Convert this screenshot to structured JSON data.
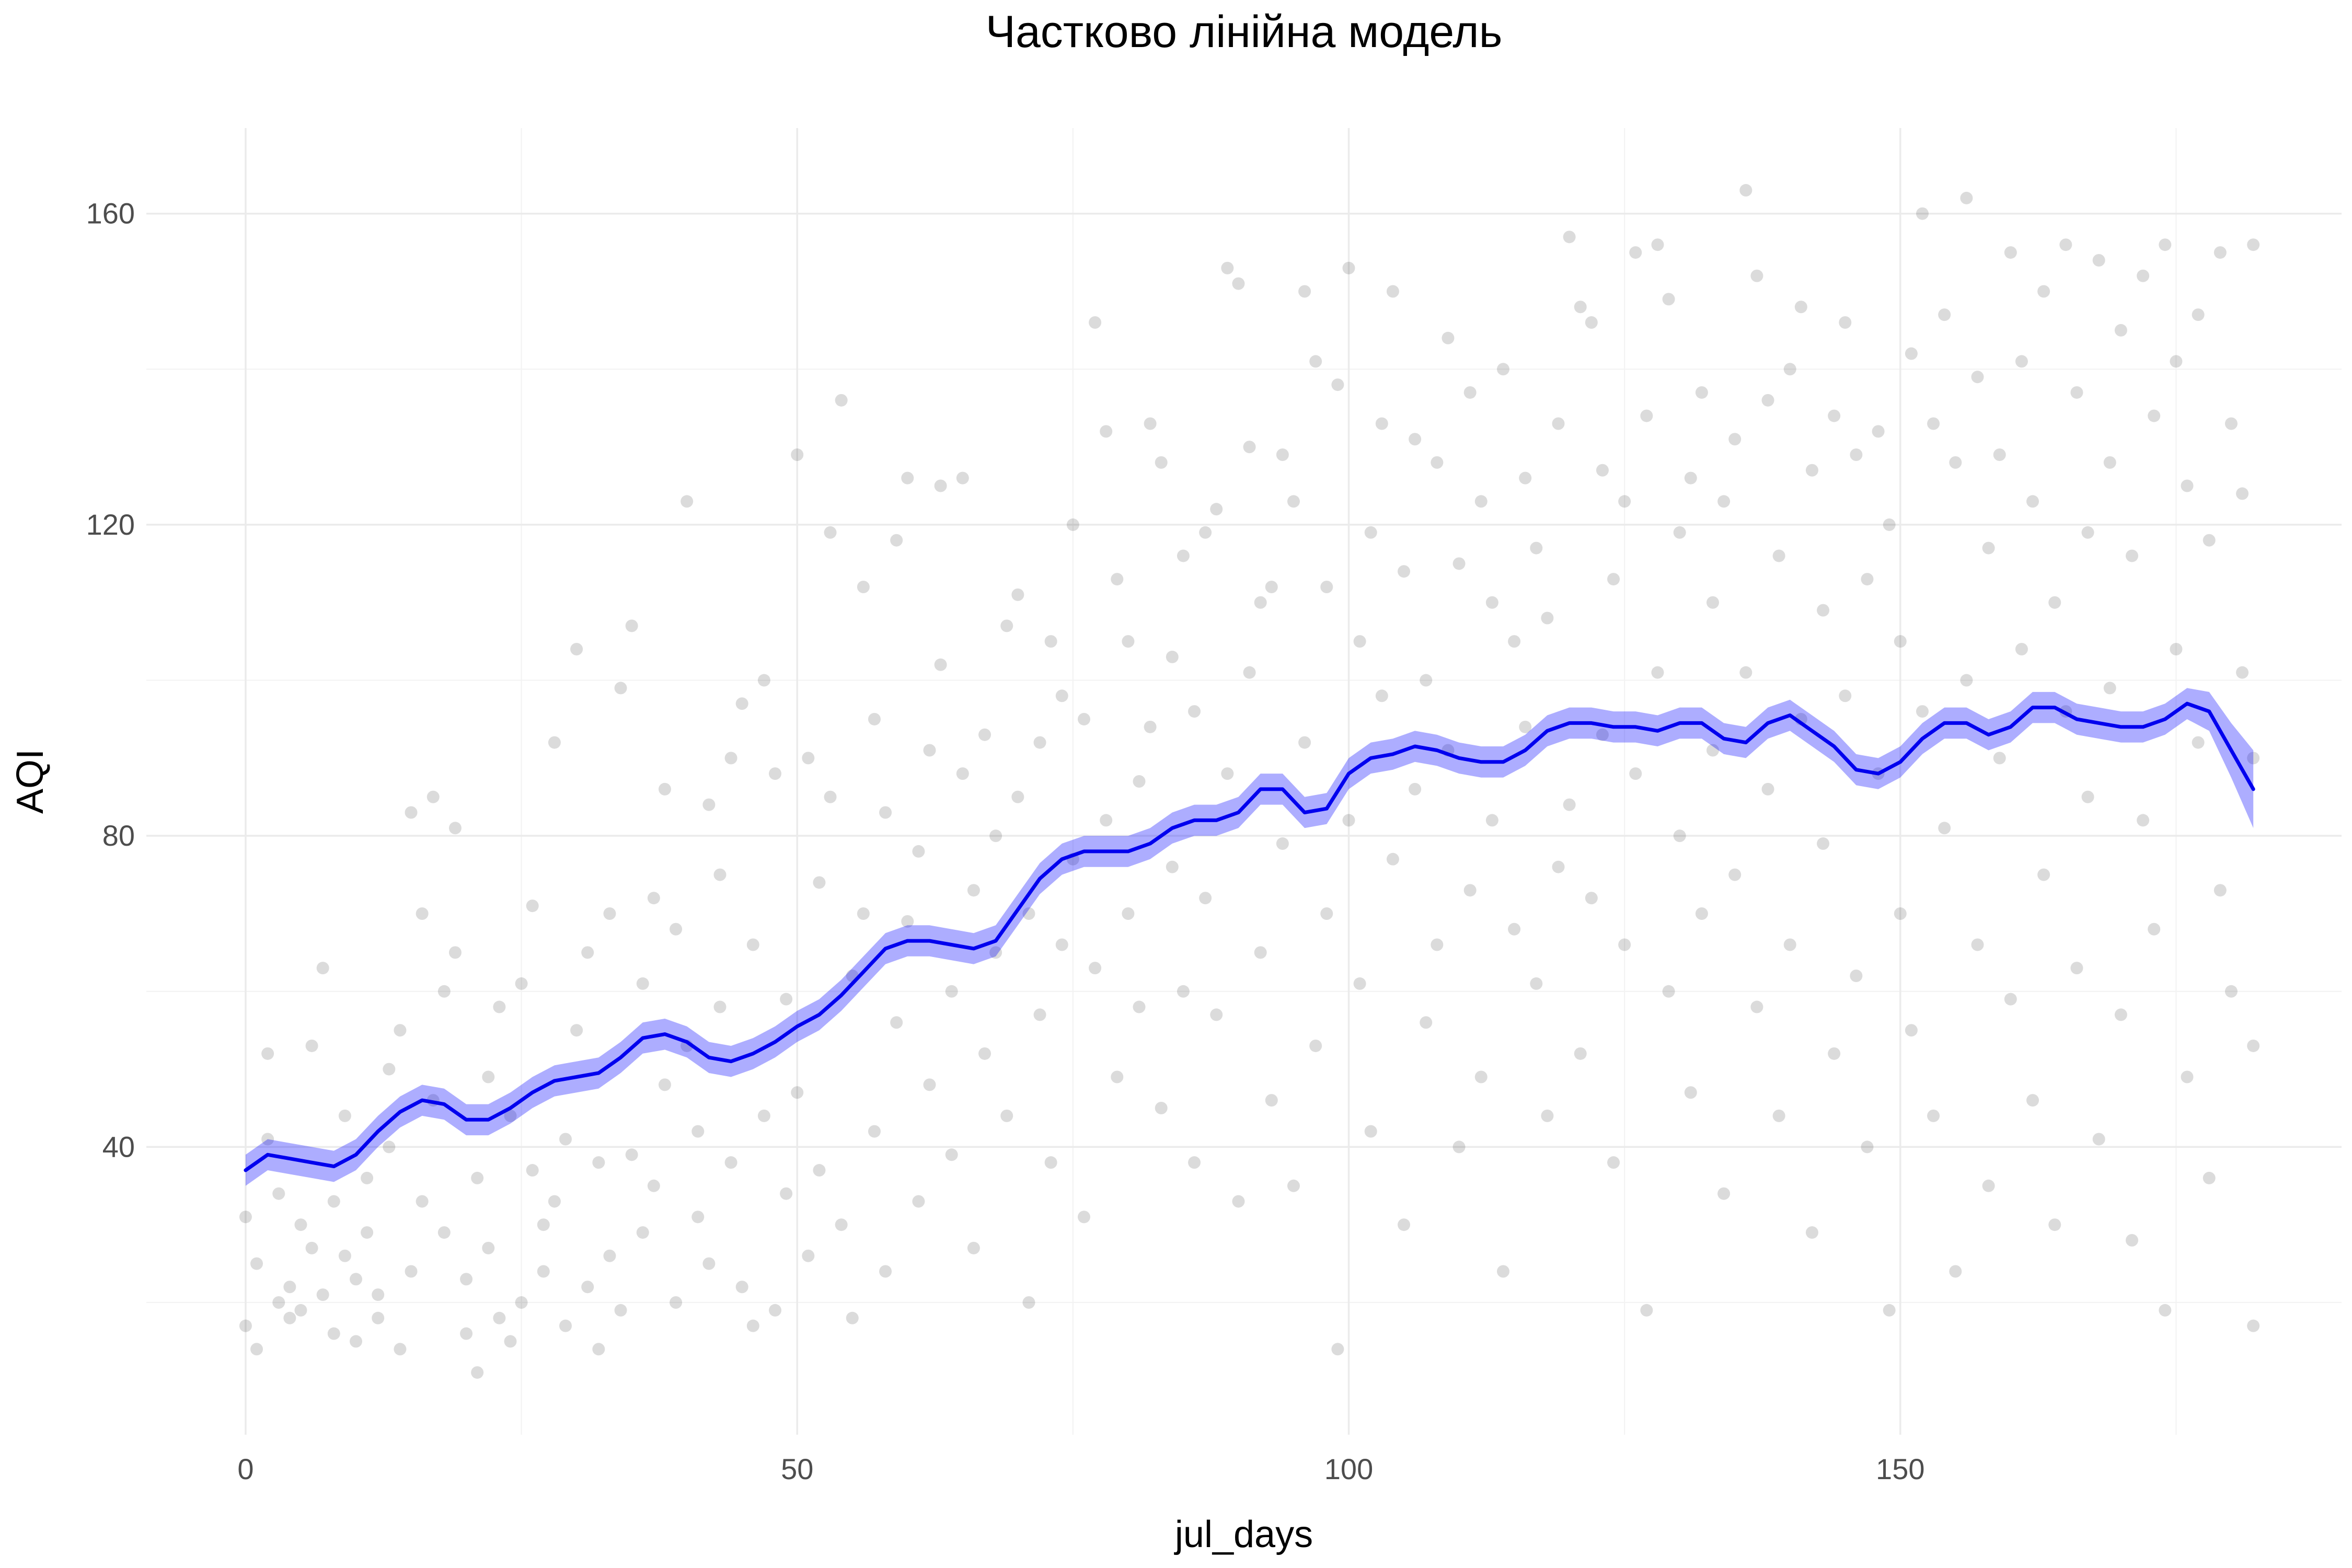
{
  "chart_data": {
    "type": "scatter",
    "title": "Частково лінійна модель",
    "xlabel": "jul_days",
    "ylabel": "AQI",
    "xlim": [
      -9,
      190
    ],
    "ylim": [
      3,
      171
    ],
    "x_ticks": [
      0,
      50,
      100,
      150
    ],
    "y_ticks": [
      40,
      80,
      120,
      160
    ],
    "grid": true,
    "legend": "none",
    "colors": {
      "points": "#000000",
      "fit_line": "#0000ee",
      "band": "#0000ff",
      "grid": "#ebebeb"
    },
    "fit_line": {
      "x": [
        0,
        2,
        4,
        6,
        8,
        10,
        12,
        14,
        16,
        18,
        20,
        22,
        24,
        26,
        28,
        30,
        32,
        34,
        36,
        38,
        40,
        42,
        44,
        46,
        48,
        50,
        52,
        54,
        56,
        58,
        60,
        62,
        64,
        66,
        68,
        70,
        72,
        74,
        76,
        78,
        80,
        82,
        84,
        86,
        88,
        90,
        92,
        94,
        96,
        98,
        100,
        102,
        104,
        106,
        108,
        110,
        112,
        114,
        116,
        118,
        120,
        122,
        124,
        126,
        128,
        130,
        132,
        134,
        136,
        138,
        140,
        142,
        144,
        146,
        148,
        150,
        152,
        154,
        156,
        158,
        160,
        162,
        164,
        166,
        168,
        170,
        172,
        174,
        176,
        178,
        180,
        182
      ],
      "y": [
        37,
        39,
        38.5,
        38,
        37.5,
        39,
        42,
        44.5,
        46,
        45.5,
        43.5,
        43.5,
        45,
        47,
        48.5,
        49,
        49.5,
        51.5,
        54,
        54.5,
        53.5,
        51.5,
        51,
        52,
        53.5,
        55.5,
        57,
        59.5,
        62.5,
        65.5,
        66.5,
        66.5,
        66,
        65.5,
        66.5,
        70.5,
        74.5,
        77,
        78,
        78,
        78,
        79,
        81,
        82,
        82,
        83,
        86,
        86,
        83,
        83.5,
        88,
        90,
        90.5,
        91.5,
        91,
        90,
        89.5,
        89.5,
        91,
        93.5,
        94.5,
        94.5,
        94,
        94,
        93.5,
        94.5,
        94.5,
        92.5,
        92,
        94.5,
        95.5,
        93.5,
        91.5,
        88.5,
        88,
        89.5,
        92.5,
        94.5,
        94.5,
        93,
        94,
        96.5,
        96.5,
        95,
        94.5,
        94,
        94,
        95,
        97,
        96,
        91,
        86
      ],
      "band_halfwidth": [
        2,
        2,
        2,
        2,
        2,
        2,
        2,
        2,
        2,
        2,
        2,
        2,
        2,
        2,
        2,
        2,
        2,
        2,
        2,
        2,
        2,
        2,
        2,
        2,
        2,
        2,
        2,
        2,
        2,
        2,
        2,
        2,
        2,
        2,
        2,
        2,
        2,
        2,
        2,
        2,
        2,
        2,
        2,
        2,
        2,
        2,
        2,
        2,
        2,
        2,
        2,
        2,
        2,
        2,
        2,
        2,
        2,
        2,
        2,
        2,
        2,
        2,
        2,
        2,
        2,
        2,
        2,
        2,
        2,
        2,
        2,
        2,
        2,
        2,
        2,
        2,
        2,
        2,
        2,
        2,
        2,
        2,
        2,
        2,
        2,
        2,
        2,
        2,
        2,
        2.5,
        3.5,
        5
      ]
    },
    "points": [
      [
        0,
        17
      ],
      [
        0,
        31
      ],
      [
        1,
        25
      ],
      [
        1,
        14
      ],
      [
        2,
        41
      ],
      [
        2,
        52
      ],
      [
        3,
        20
      ],
      [
        3,
        34
      ],
      [
        4,
        22
      ],
      [
        4,
        18
      ],
      [
        5,
        30
      ],
      [
        5,
        19
      ],
      [
        6,
        27
      ],
      [
        6,
        53
      ],
      [
        7,
        63
      ],
      [
        7,
        21
      ],
      [
        8,
        16
      ],
      [
        8,
        33
      ],
      [
        9,
        26
      ],
      [
        9,
        44
      ],
      [
        10,
        23
      ],
      [
        10,
        15
      ],
      [
        11,
        29
      ],
      [
        11,
        36
      ],
      [
        12,
        18
      ],
      [
        12,
        21
      ],
      [
        13,
        40
      ],
      [
        13,
        50
      ],
      [
        14,
        55
      ],
      [
        14,
        14
      ],
      [
        15,
        24
      ],
      [
        15,
        83
      ],
      [
        16,
        70
      ],
      [
        16,
        33
      ],
      [
        17,
        85
      ],
      [
        17,
        46
      ],
      [
        18,
        60
      ],
      [
        18,
        29
      ],
      [
        19,
        81
      ],
      [
        19,
        65
      ],
      [
        20,
        16
      ],
      [
        20,
        23
      ],
      [
        21,
        11
      ],
      [
        21,
        36
      ],
      [
        22,
        49
      ],
      [
        22,
        27
      ],
      [
        23,
        18
      ],
      [
        23,
        58
      ],
      [
        24,
        15
      ],
      [
        24,
        44
      ],
      [
        25,
        61
      ],
      [
        25,
        20
      ],
      [
        26,
        37
      ],
      [
        26,
        71
      ],
      [
        27,
        30
      ],
      [
        27,
        24
      ],
      [
        28,
        92
      ],
      [
        28,
        33
      ],
      [
        29,
        17
      ],
      [
        29,
        41
      ],
      [
        30,
        104
      ],
      [
        30,
        55
      ],
      [
        31,
        22
      ],
      [
        31,
        65
      ],
      [
        32,
        38
      ],
      [
        32,
        14
      ],
      [
        33,
        70
      ],
      [
        33,
        26
      ],
      [
        34,
        99
      ],
      [
        34,
        19
      ],
      [
        35,
        39
      ],
      [
        35,
        107
      ],
      [
        36,
        61
      ],
      [
        36,
        29
      ],
      [
        37,
        72
      ],
      [
        37,
        35
      ],
      [
        38,
        86
      ],
      [
        38,
        48
      ],
      [
        39,
        20
      ],
      [
        39,
        68
      ],
      [
        40,
        123
      ],
      [
        40,
        53
      ],
      [
        41,
        42
      ],
      [
        41,
        31
      ],
      [
        42,
        84
      ],
      [
        42,
        25
      ],
      [
        43,
        58
      ],
      [
        43,
        75
      ],
      [
        44,
        90
      ],
      [
        44,
        38
      ],
      [
        45,
        97
      ],
      [
        45,
        22
      ],
      [
        46,
        66
      ],
      [
        46,
        17
      ],
      [
        47,
        44
      ],
      [
        47,
        100
      ],
      [
        48,
        88
      ],
      [
        48,
        19
      ],
      [
        49,
        34
      ],
      [
        49,
        59
      ],
      [
        50,
        129
      ],
      [
        50,
        47
      ],
      [
        51,
        90
      ],
      [
        51,
        26
      ],
      [
        52,
        74
      ],
      [
        52,
        37
      ],
      [
        53,
        119
      ],
      [
        53,
        85
      ],
      [
        54,
        136
      ],
      [
        54,
        30
      ],
      [
        55,
        62
      ],
      [
        55,
        18
      ],
      [
        56,
        112
      ],
      [
        56,
        70
      ],
      [
        57,
        42
      ],
      [
        57,
        95
      ],
      [
        58,
        83
      ],
      [
        58,
        24
      ],
      [
        59,
        118
      ],
      [
        59,
        56
      ],
      [
        60,
        126
      ],
      [
        60,
        69
      ],
      [
        61,
        78
      ],
      [
        61,
        33
      ],
      [
        62,
        91
      ],
      [
        62,
        48
      ],
      [
        63,
        125
      ],
      [
        63,
        102
      ],
      [
        64,
        60
      ],
      [
        64,
        39
      ],
      [
        65,
        126
      ],
      [
        65,
        88
      ],
      [
        66,
        73
      ],
      [
        66,
        27
      ],
      [
        67,
        93
      ],
      [
        67,
        52
      ],
      [
        68,
        80
      ],
      [
        68,
        65
      ],
      [
        69,
        107
      ],
      [
        69,
        44
      ],
      [
        70,
        111
      ],
      [
        70,
        85
      ],
      [
        71,
        70
      ],
      [
        71,
        20
      ],
      [
        72,
        92
      ],
      [
        72,
        57
      ],
      [
        73,
        105
      ],
      [
        73,
        38
      ],
      [
        74,
        98
      ],
      [
        74,
        66
      ],
      [
        75,
        120
      ],
      [
        75,
        77
      ],
      [
        76,
        95
      ],
      [
        76,
        31
      ],
      [
        77,
        146
      ],
      [
        77,
        63
      ],
      [
        78,
        132
      ],
      [
        78,
        82
      ],
      [
        79,
        113
      ],
      [
        79,
        49
      ],
      [
        80,
        105
      ],
      [
        80,
        70
      ],
      [
        81,
        87
      ],
      [
        81,
        58
      ],
      [
        82,
        133
      ],
      [
        82,
        94
      ],
      [
        83,
        128
      ],
      [
        83,
        45
      ],
      [
        84,
        103
      ],
      [
        84,
        76
      ],
      [
        85,
        116
      ],
      [
        85,
        60
      ],
      [
        86,
        96
      ],
      [
        86,
        38
      ],
      [
        87,
        119
      ],
      [
        87,
        72
      ],
      [
        88,
        122
      ],
      [
        88,
        57
      ],
      [
        89,
        153
      ],
      [
        89,
        88
      ],
      [
        90,
        151
      ],
      [
        90,
        33
      ],
      [
        91,
        130
      ],
      [
        91,
        101
      ],
      [
        92,
        110
      ],
      [
        92,
        65
      ],
      [
        93,
        112
      ],
      [
        93,
        46
      ],
      [
        94,
        129
      ],
      [
        94,
        79
      ],
      [
        95,
        123
      ],
      [
        95,
        35
      ],
      [
        96,
        150
      ],
      [
        96,
        92
      ],
      [
        97,
        141
      ],
      [
        97,
        53
      ],
      [
        98,
        112
      ],
      [
        98,
        70
      ],
      [
        99,
        138
      ],
      [
        99,
        14
      ],
      [
        100,
        153
      ],
      [
        100,
        82
      ],
      [
        101,
        105
      ],
      [
        101,
        61
      ],
      [
        102,
        119
      ],
      [
        102,
        42
      ],
      [
        103,
        133
      ],
      [
        103,
        98
      ],
      [
        104,
        150
      ],
      [
        104,
        77
      ],
      [
        105,
        114
      ],
      [
        105,
        30
      ],
      [
        106,
        131
      ],
      [
        106,
        86
      ],
      [
        107,
        100
      ],
      [
        107,
        56
      ],
      [
        108,
        128
      ],
      [
        108,
        66
      ],
      [
        109,
        144
      ],
      [
        109,
        91
      ],
      [
        110,
        115
      ],
      [
        110,
        40
      ],
      [
        111,
        137
      ],
      [
        111,
        73
      ],
      [
        112,
        123
      ],
      [
        112,
        49
      ],
      [
        113,
        110
      ],
      [
        113,
        82
      ],
      [
        114,
        140
      ],
      [
        114,
        24
      ],
      [
        115,
        105
      ],
      [
        115,
        68
      ],
      [
        116,
        126
      ],
      [
        116,
        94
      ],
      [
        117,
        117
      ],
      [
        117,
        61
      ],
      [
        118,
        108
      ],
      [
        118,
        44
      ],
      [
        119,
        133
      ],
      [
        119,
        76
      ],
      [
        120,
        157
      ],
      [
        120,
        84
      ],
      [
        121,
        148
      ],
      [
        121,
        52
      ],
      [
        122,
        146
      ],
      [
        122,
        72
      ],
      [
        123,
        127
      ],
      [
        123,
        93
      ],
      [
        124,
        113
      ],
      [
        124,
        38
      ],
      [
        125,
        123
      ],
      [
        125,
        66
      ],
      [
        126,
        155
      ],
      [
        126,
        88
      ],
      [
        127,
        134
      ],
      [
        127,
        19
      ],
      [
        128,
        156
      ],
      [
        128,
        101
      ],
      [
        129,
        149
      ],
      [
        129,
        60
      ],
      [
        130,
        119
      ],
      [
        130,
        80
      ],
      [
        131,
        126
      ],
      [
        131,
        47
      ],
      [
        132,
        137
      ],
      [
        132,
        70
      ],
      [
        133,
        110
      ],
      [
        133,
        91
      ],
      [
        134,
        123
      ],
      [
        134,
        34
      ],
      [
        135,
        131
      ],
      [
        135,
        75
      ],
      [
        136,
        163
      ],
      [
        136,
        101
      ],
      [
        137,
        152
      ],
      [
        137,
        58
      ],
      [
        138,
        136
      ],
      [
        138,
        86
      ],
      [
        139,
        116
      ],
      [
        139,
        44
      ],
      [
        140,
        140
      ],
      [
        140,
        66
      ],
      [
        141,
        148
      ],
      [
        141,
        95
      ],
      [
        142,
        127
      ],
      [
        142,
        29
      ],
      [
        143,
        109
      ],
      [
        143,
        79
      ],
      [
        144,
        134
      ],
      [
        144,
        52
      ],
      [
        145,
        146
      ],
      [
        145,
        98
      ],
      [
        146,
        129
      ],
      [
        146,
        62
      ],
      [
        147,
        113
      ],
      [
        147,
        40
      ],
      [
        148,
        132
      ],
      [
        148,
        88
      ],
      [
        149,
        120
      ],
      [
        149,
        19
      ],
      [
        150,
        105
      ],
      [
        150,
        70
      ],
      [
        151,
        142
      ],
      [
        151,
        55
      ],
      [
        152,
        160
      ],
      [
        152,
        96
      ],
      [
        153,
        133
      ],
      [
        153,
        44
      ],
      [
        154,
        147
      ],
      [
        154,
        81
      ],
      [
        155,
        128
      ],
      [
        155,
        24
      ],
      [
        156,
        162
      ],
      [
        156,
        100
      ],
      [
        157,
        139
      ],
      [
        157,
        66
      ],
      [
        158,
        117
      ],
      [
        158,
        35
      ],
      [
        159,
        129
      ],
      [
        159,
        90
      ],
      [
        160,
        155
      ],
      [
        160,
        59
      ],
      [
        161,
        141
      ],
      [
        161,
        104
      ],
      [
        162,
        123
      ],
      [
        162,
        46
      ],
      [
        163,
        150
      ],
      [
        163,
        75
      ],
      [
        164,
        110
      ],
      [
        164,
        30
      ],
      [
        165,
        156
      ],
      [
        165,
        96
      ],
      [
        166,
        137
      ],
      [
        166,
        63
      ],
      [
        167,
        119
      ],
      [
        167,
        85
      ],
      [
        168,
        154
      ],
      [
        168,
        41
      ],
      [
        169,
        128
      ],
      [
        169,
        99
      ],
      [
        170,
        145
      ],
      [
        170,
        57
      ],
      [
        171,
        116
      ],
      [
        171,
        28
      ],
      [
        172,
        152
      ],
      [
        172,
        82
      ],
      [
        173,
        134
      ],
      [
        173,
        68
      ],
      [
        174,
        156
      ],
      [
        174,
        19
      ],
      [
        175,
        141
      ],
      [
        175,
        104
      ],
      [
        176,
        125
      ],
      [
        176,
        49
      ],
      [
        177,
        147
      ],
      [
        177,
        92
      ],
      [
        178,
        118
      ],
      [
        178,
        36
      ],
      [
        179,
        155
      ],
      [
        179,
        73
      ],
      [
        180,
        133
      ],
      [
        180,
        60
      ],
      [
        181,
        124
      ],
      [
        181,
        101
      ],
      [
        182,
        156
      ],
      [
        182,
        17
      ],
      [
        182,
        90
      ],
      [
        182,
        53
      ]
    ]
  }
}
